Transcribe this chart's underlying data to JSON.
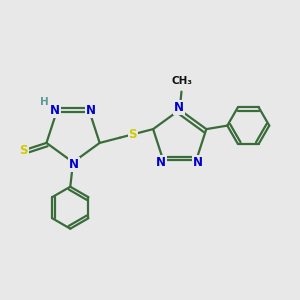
{
  "bg": "#e8e8e8",
  "bond_color": "#3a6b3a",
  "N_color": "#0000cc",
  "S_color": "#cccc00",
  "H_color": "#5a9a9a",
  "lw": 1.6,
  "fs": 8.5,
  "fs_small": 7.5,
  "xlim": [
    0.0,
    8.5
  ],
  "ylim": [
    2.5,
    7.5
  ]
}
